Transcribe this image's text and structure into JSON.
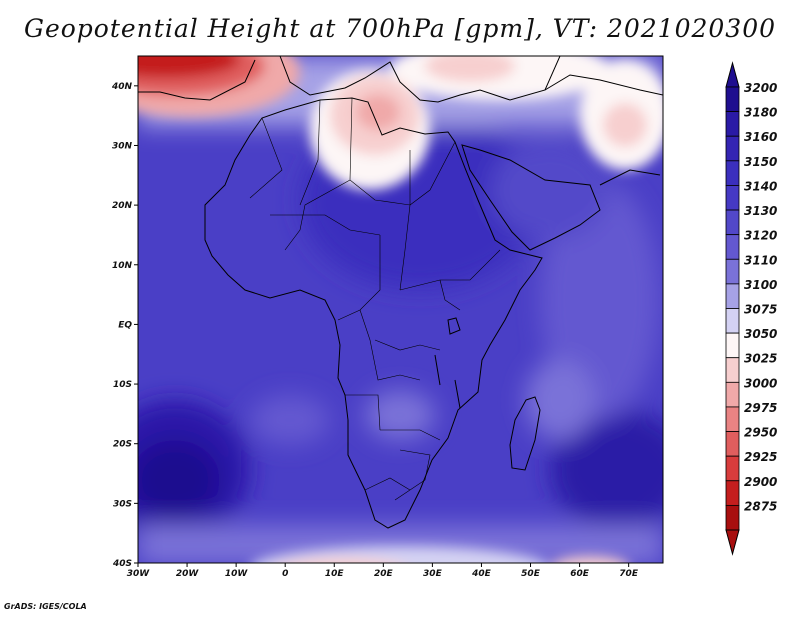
{
  "title": "Geopotential Height at 700hPa [gpm], VT: 2021020300",
  "credit": "GrADS: IGES/COLA",
  "map": {
    "variable": "Geopotential Height at 700hPa",
    "units": "gpm",
    "valid_time": "2021020300",
    "lon_range": [
      -30,
      77
    ],
    "lat_range": [
      -40,
      45
    ],
    "lon_ticks": [
      "30W",
      "20W",
      "10W",
      "0",
      "10E",
      "20E",
      "30E",
      "40E",
      "50E",
      "60E",
      "70E"
    ],
    "lat_ticks": [
      "40N",
      "30N",
      "20N",
      "10N",
      "EQ",
      "10S",
      "20S",
      "30S",
      "40S"
    ]
  },
  "colorbar": {
    "levels": [
      "3200",
      "3180",
      "3160",
      "3150",
      "3140",
      "3130",
      "3120",
      "3110",
      "3100",
      "3075",
      "3050",
      "3025",
      "3000",
      "2975",
      "2950",
      "2925",
      "2900",
      "2875"
    ],
    "colors": [
      "#1f0e8f",
      "#2a1aa6",
      "#3424b3",
      "#3b2fbe",
      "#4539c4",
      "#5248c9",
      "#6358d0",
      "#7a72d8",
      "#a6a2e6",
      "#d4d2f3",
      "#fdf6f6",
      "#f7cfcf",
      "#f0a9a9",
      "#e98383",
      "#e05e5e",
      "#d83c3c",
      "#c41e1e",
      "#a80f0f"
    ],
    "extend_top_color": "#1f0e8f",
    "extend_bottom_color": "#a80f0f"
  }
}
